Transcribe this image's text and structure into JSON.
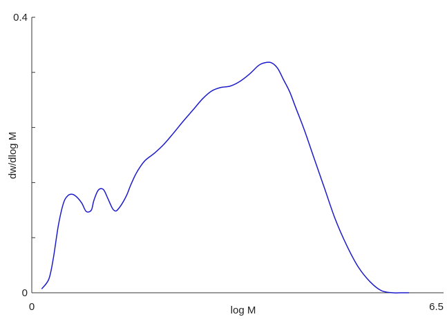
{
  "chart_data": {
    "type": "line",
    "xlabel": "log M",
    "ylabel": "dw/dlog M",
    "xlim": [
      0,
      6.5
    ],
    "ylim": [
      0,
      0.4
    ],
    "x_tick_labels": [
      {
        "value": 0,
        "label": "0"
      },
      {
        "value": 6.5,
        "label": "6.5"
      }
    ],
    "y_tick_labels": [
      {
        "value": 0,
        "label": "0"
      },
      {
        "value": 0.4,
        "label": "0.4"
      }
    ],
    "y_minor_ticks": [
      0.08,
      0.16,
      0.24,
      0.32
    ],
    "grid": false,
    "colors": {
      "series": "#1a1acc",
      "axis": "#333333"
    },
    "series": [
      {
        "x": [
          0.16,
          0.27,
          0.34,
          0.42,
          0.5,
          0.57,
          0.64,
          0.71,
          0.79,
          0.86,
          0.94,
          0.98,
          1.05,
          1.13,
          1.2,
          1.27,
          1.31,
          1.35,
          1.43,
          1.5,
          1.56,
          1.64,
          1.72,
          1.8,
          1.94,
          2.08,
          2.23,
          2.39,
          2.55,
          2.7,
          2.84,
          2.98,
          3.13,
          3.27,
          3.43,
          3.58,
          3.68,
          3.78,
          3.88,
          3.97,
          4.07,
          4.17,
          4.3,
          4.45,
          4.62,
          4.79,
          4.97,
          5.15,
          5.34,
          5.52,
          5.7,
          5.82,
          5.95
        ],
        "y": [
          0.006,
          0.02,
          0.05,
          0.098,
          0.13,
          0.141,
          0.143,
          0.139,
          0.13,
          0.118,
          0.12,
          0.134,
          0.149,
          0.15,
          0.137,
          0.123,
          0.119,
          0.12,
          0.13,
          0.142,
          0.156,
          0.172,
          0.184,
          0.193,
          0.203,
          0.215,
          0.231,
          0.249,
          0.266,
          0.282,
          0.293,
          0.298,
          0.3,
          0.306,
          0.317,
          0.33,
          0.334,
          0.334,
          0.326,
          0.31,
          0.292,
          0.268,
          0.237,
          0.197,
          0.152,
          0.107,
          0.069,
          0.038,
          0.016,
          0.003,
          0.0,
          0.0,
          0.0
        ]
      }
    ]
  }
}
